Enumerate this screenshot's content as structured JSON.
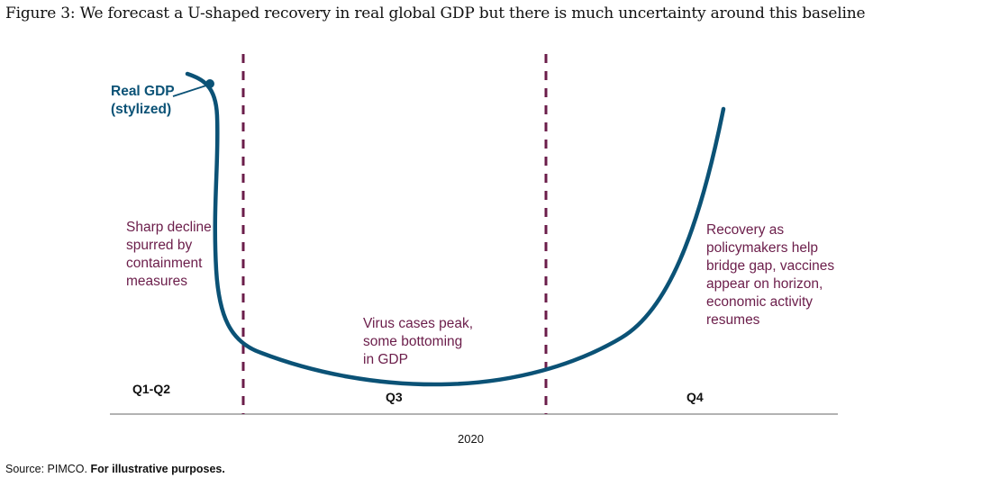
{
  "title": "Figure 3: We forecast a U-shaped recovery in real global GDP but there is much uncertainty around this baseline",
  "series_label": [
    "Real GDP",
    "(stylized)"
  ],
  "annotations": {
    "decline": [
      "Sharp decline",
      "spurred by",
      "containment",
      "measures"
    ],
    "bottom": [
      "Virus cases peak,",
      "some bottoming",
      "in GDP"
    ],
    "recovery": [
      "Recovery as",
      "policymakers help",
      "bridge gap, vaccines",
      "appear on horizon,",
      "economic activity",
      "resumes"
    ]
  },
  "periods": [
    "Q1-Q2",
    "Q3",
    "Q4"
  ],
  "x_label": "2020",
  "source": {
    "prefix": "Source: PIMCO. ",
    "note": "For illustrative purposes."
  },
  "colors": {
    "curve": "#0b5276",
    "dividers": "#6b1d4a",
    "annotations": "#6b1d4a",
    "axis": "#999999"
  }
}
